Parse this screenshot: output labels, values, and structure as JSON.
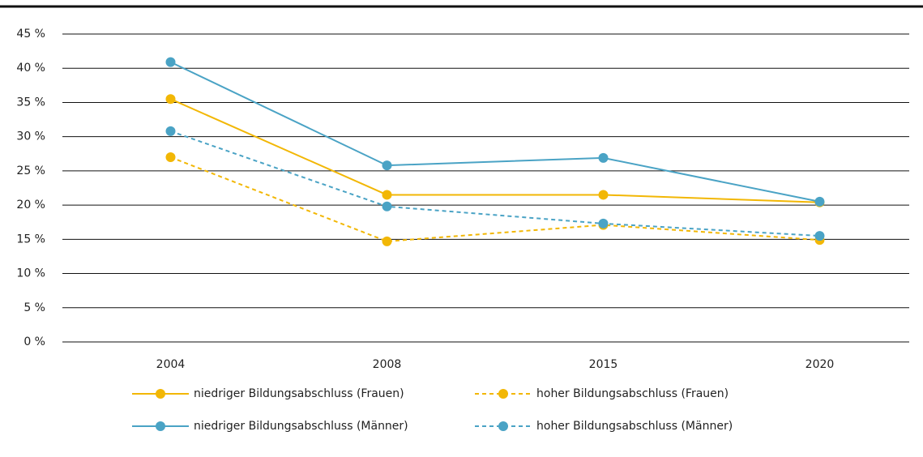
{
  "chart_data": {
    "type": "line",
    "categories": [
      "2004",
      "2008",
      "2015",
      "2020"
    ],
    "series": [
      {
        "name": "niedriger Bildungsabschluss (Frauen)",
        "color": "#f2b705",
        "line_style": "solid",
        "values": [
          35.5,
          21.5,
          21.5,
          20.4
        ]
      },
      {
        "name": "hoher Bildungsabschluss (Frauen)",
        "color": "#f2b705",
        "line_style": "dashed",
        "values": [
          27.0,
          14.7,
          17.1,
          14.9
        ]
      },
      {
        "name": "niedriger Bildungsabschluss (Männer)",
        "color": "#4aa3c5",
        "line_style": "solid",
        "values": [
          40.9,
          25.8,
          26.9,
          20.5
        ]
      },
      {
        "name": "hoher Bildungsabschluss (Männer)",
        "color": "#4aa3c5",
        "line_style": "dashed",
        "values": [
          30.8,
          19.8,
          17.3,
          15.5
        ]
      }
    ],
    "ylim": [
      0,
      45
    ],
    "yticks": [
      {
        "value": 0,
        "label": "0 %"
      },
      {
        "value": 5,
        "label": "5 %"
      },
      {
        "value": 10,
        "label": "10 %"
      },
      {
        "value": 15,
        "label": "15 %"
      },
      {
        "value": 20,
        "label": "20 %"
      },
      {
        "value": 25,
        "label": "25 %"
      },
      {
        "value": 30,
        "label": "30 %"
      },
      {
        "value": 35,
        "label": "35 %"
      },
      {
        "value": 40,
        "label": "40 %"
      },
      {
        "value": 45,
        "label": "45 %"
      }
    ],
    "grid": true
  }
}
